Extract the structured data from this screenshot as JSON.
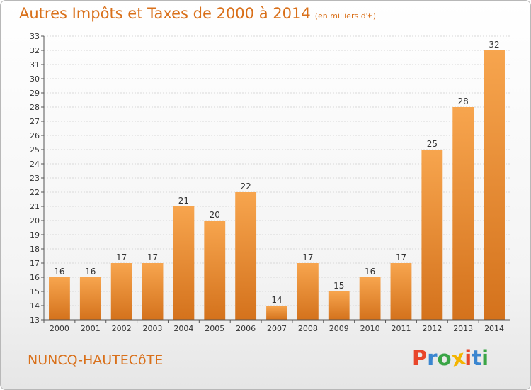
{
  "chart_data": {
    "type": "bar",
    "title": "Autres Impôts et Taxes de 2000 à 2014",
    "subtitle": "(en milliers d'€)",
    "categories": [
      "2000",
      "2001",
      "2002",
      "2003",
      "2004",
      "2005",
      "2006",
      "2007",
      "2008",
      "2009",
      "2010",
      "2011",
      "2012",
      "2013",
      "2014"
    ],
    "values": [
      16,
      16,
      17,
      17,
      21,
      20,
      22,
      14,
      17,
      15,
      16,
      17,
      25,
      28,
      32
    ],
    "ylim": [
      13,
      33
    ],
    "yticks": [
      13,
      14,
      15,
      16,
      17,
      18,
      19,
      20,
      21,
      22,
      23,
      24,
      25,
      26,
      27,
      28,
      29,
      30,
      31,
      32,
      33
    ],
    "grid": true,
    "bar_color": "#f0922f",
    "bar_color_dark": "#d4721c"
  },
  "footer": {
    "town": "NUNCQ-HAUTECôTE",
    "brand_letters": [
      "P",
      "r",
      "o",
      "x",
      "i",
      "t",
      "i"
    ],
    "brand_colors": [
      "#e8462a",
      "#3a86d0",
      "#3aa546",
      "#f4b400",
      "#e8462a",
      "#3a86d0",
      "#3aa546"
    ]
  },
  "colors": {
    "accent": "#d9701a",
    "grid": "#d8d8d8",
    "axis": "#555555"
  }
}
